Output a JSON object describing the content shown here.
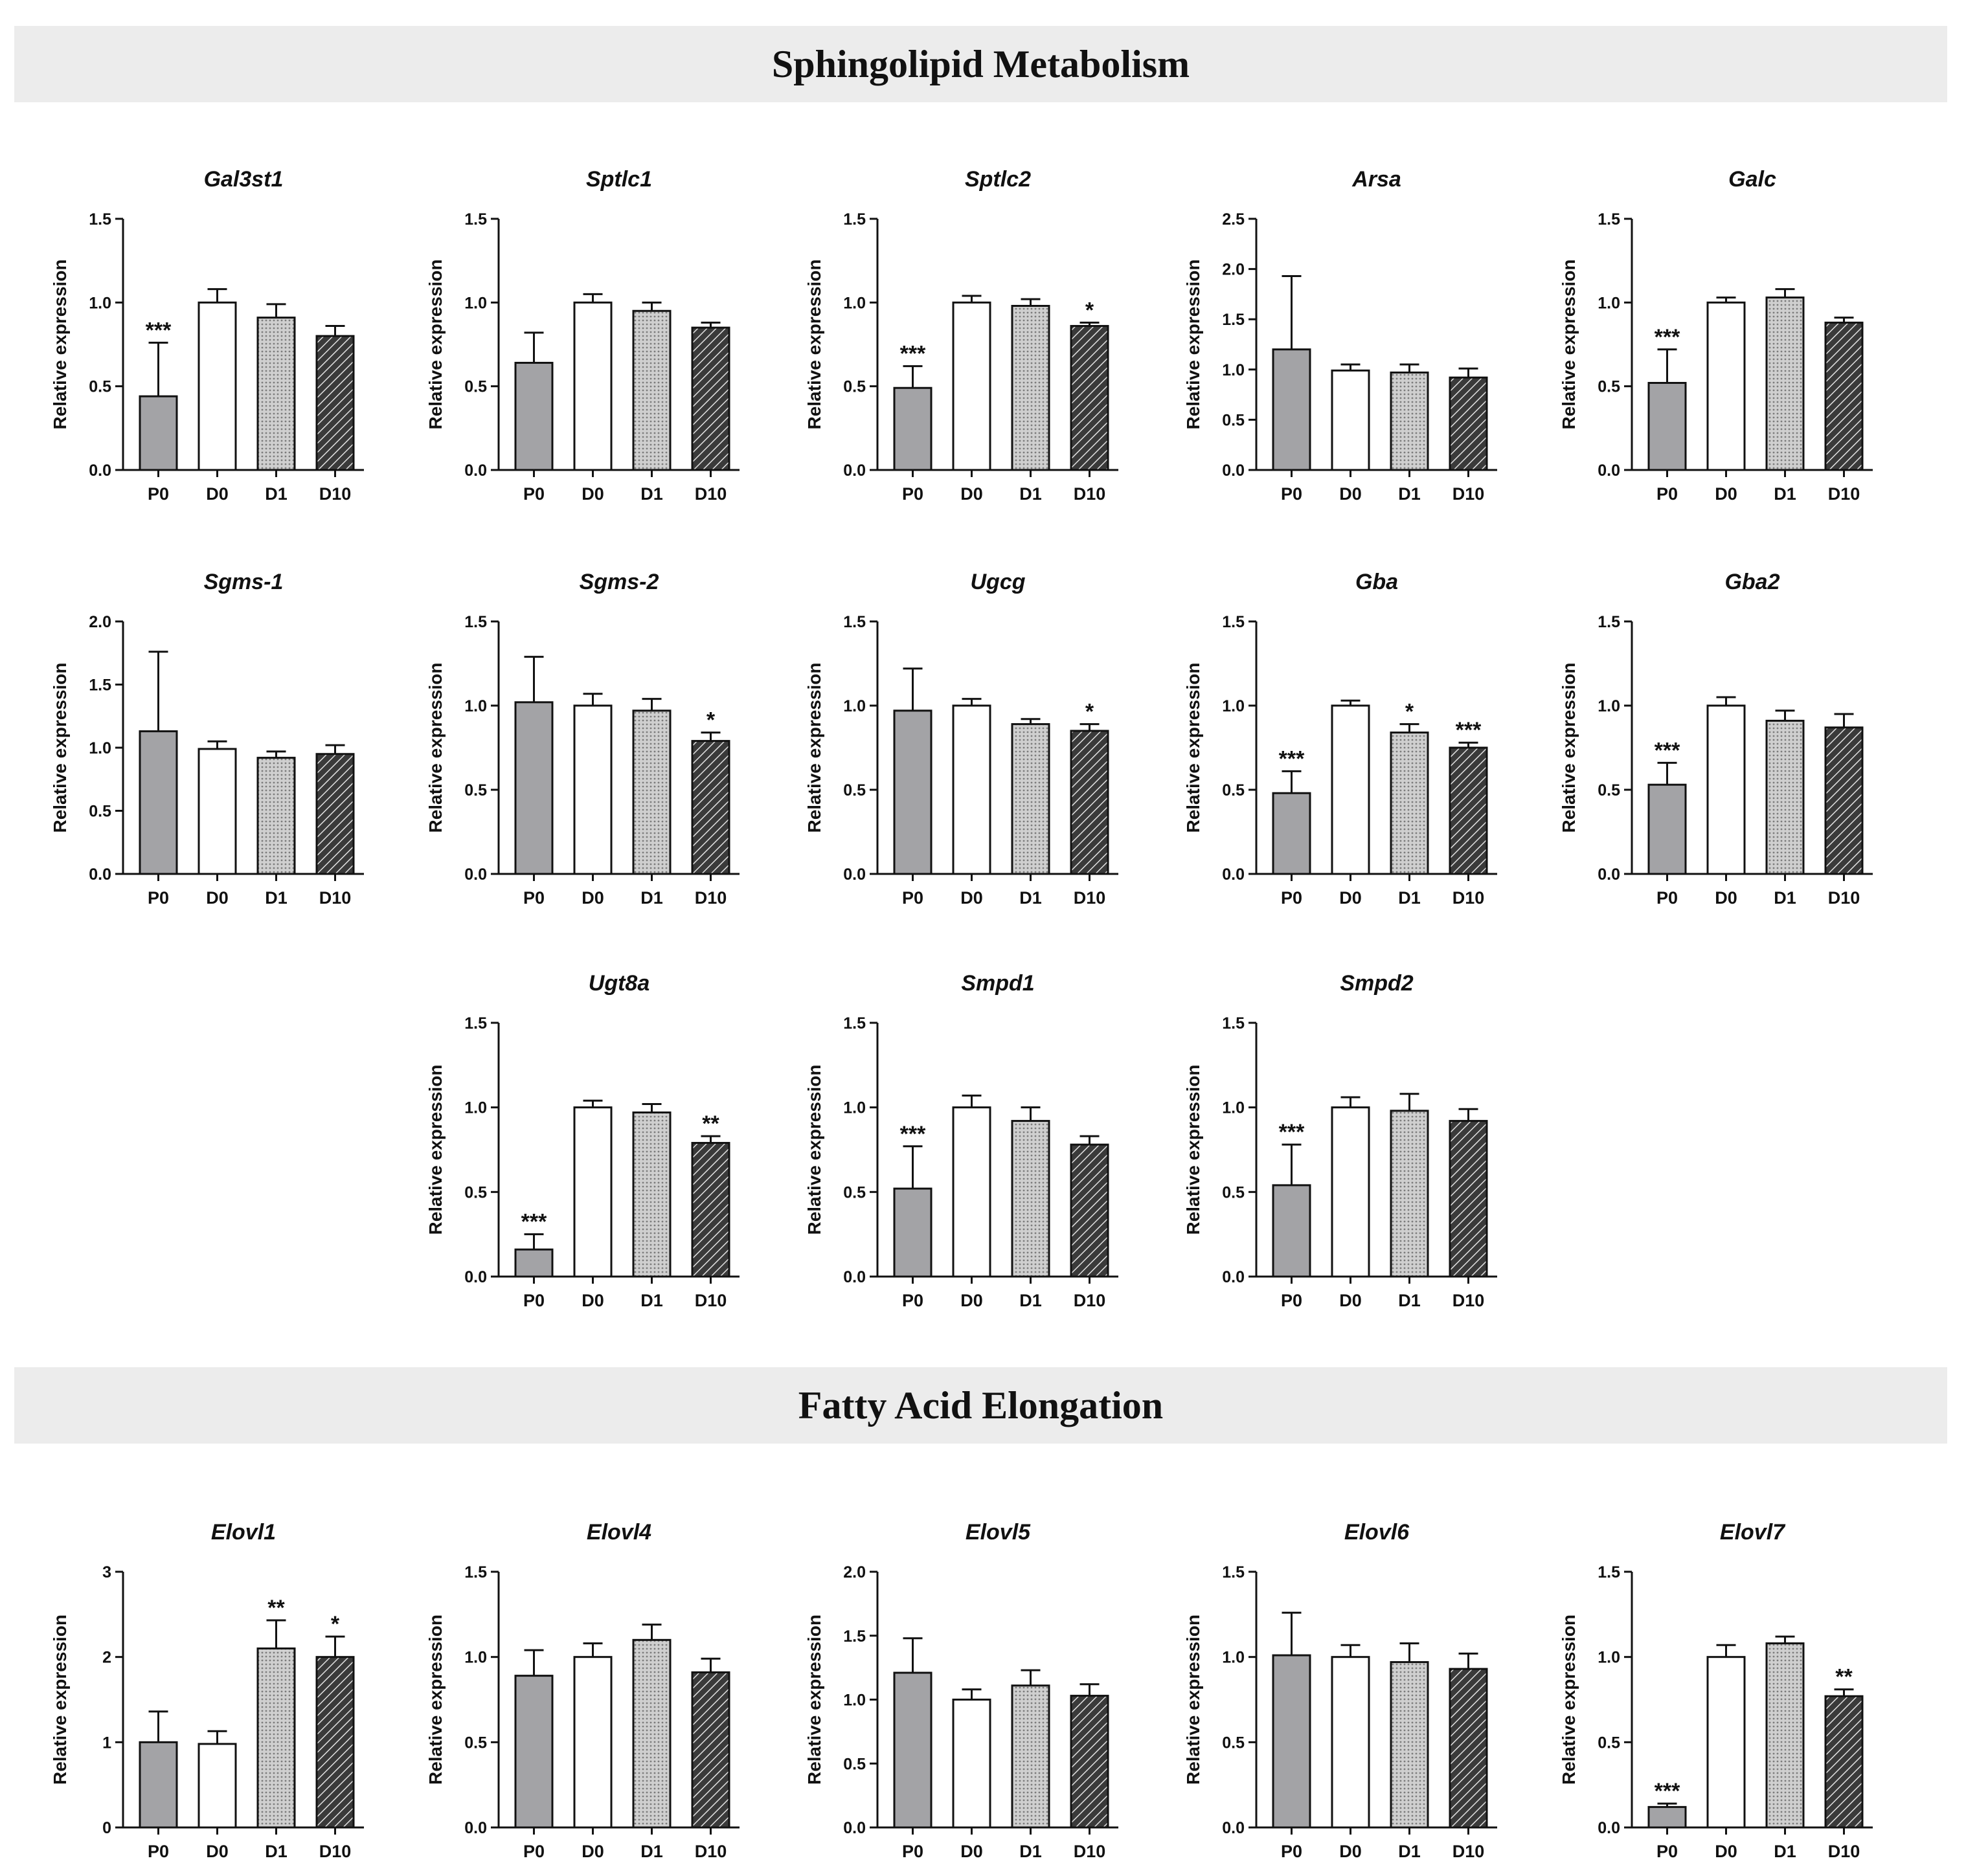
{
  "sections": {
    "sphingolipid": "Sphingolipid Metabolism",
    "fatty_acid": "Fatty Acid Elongation"
  },
  "colors": {
    "P0": "#a3a3a6",
    "D0": "#ffffff",
    "D1": "#c8c8c8",
    "D10": "#4a4a4a",
    "axis": "#111111"
  },
  "chart_data": [
    {
      "type": "bar",
      "title": "Gal3st1",
      "ylabel": "Relative expression",
      "categories": [
        "P0",
        "D0",
        "D1",
        "D10"
      ],
      "values": [
        0.44,
        1.0,
        0.91,
        0.8
      ],
      "errors": [
        0.32,
        0.08,
        0.08,
        0.06
      ],
      "significance": [
        "***",
        "",
        "",
        ""
      ],
      "ylim": [
        0,
        1.5
      ],
      "yticks": [
        0.0,
        0.5,
        1.0,
        1.5
      ],
      "tick_labels": [
        "0.0",
        "0.5",
        "1.0",
        "1.5"
      ]
    },
    {
      "type": "bar",
      "title": "Sptlc1",
      "ylabel": "Relative expression",
      "categories": [
        "P0",
        "D0",
        "D1",
        "D10"
      ],
      "values": [
        0.64,
        1.0,
        0.95,
        0.85
      ],
      "errors": [
        0.18,
        0.05,
        0.05,
        0.03
      ],
      "significance": [
        "",
        "",
        "",
        ""
      ],
      "ylim": [
        0,
        1.5
      ],
      "yticks": [
        0.0,
        0.5,
        1.0,
        1.5
      ],
      "tick_labels": [
        "0.0",
        "0.5",
        "1.0",
        "1.5"
      ]
    },
    {
      "type": "bar",
      "title": "Sptlc2",
      "ylabel": "Relative expression",
      "categories": [
        "P0",
        "D0",
        "D1",
        "D10"
      ],
      "values": [
        0.49,
        1.0,
        0.98,
        0.86
      ],
      "errors": [
        0.13,
        0.04,
        0.04,
        0.02
      ],
      "significance": [
        "***",
        "",
        "",
        "*"
      ],
      "ylim": [
        0,
        1.5
      ],
      "yticks": [
        0.0,
        0.5,
        1.0,
        1.5
      ],
      "tick_labels": [
        "0.0",
        "0.5",
        "1.0",
        "1.5"
      ]
    },
    {
      "type": "bar",
      "title": "Arsa",
      "ylabel": "Relative expression",
      "categories": [
        "P0",
        "D0",
        "D1",
        "D10"
      ],
      "values": [
        1.2,
        0.99,
        0.97,
        0.92
      ],
      "errors": [
        0.73,
        0.06,
        0.08,
        0.09
      ],
      "significance": [
        "",
        "",
        "",
        ""
      ],
      "ylim": [
        0,
        2.5
      ],
      "yticks": [
        0.0,
        0.5,
        1.0,
        1.5,
        2.0,
        2.5
      ],
      "tick_labels": [
        "0.0",
        "0.5",
        "1.0",
        "1.5",
        "2.0",
        "2.5"
      ]
    },
    {
      "type": "bar",
      "title": "Galc",
      "ylabel": "Relative expression",
      "categories": [
        "P0",
        "D0",
        "D1",
        "D10"
      ],
      "values": [
        0.52,
        1.0,
        1.03,
        0.88
      ],
      "errors": [
        0.2,
        0.03,
        0.05,
        0.03
      ],
      "significance": [
        "***",
        "",
        "",
        ""
      ],
      "ylim": [
        0,
        1.5
      ],
      "yticks": [
        0.0,
        0.5,
        1.0,
        1.5
      ],
      "tick_labels": [
        "0.0",
        "0.5",
        "1.0",
        "1.5"
      ]
    },
    {
      "type": "bar",
      "title": "Sgms-1",
      "ylabel": "Relative expression",
      "categories": [
        "P0",
        "D0",
        "D1",
        "D10"
      ],
      "values": [
        1.13,
        0.99,
        0.92,
        0.95
      ],
      "errors": [
        0.63,
        0.06,
        0.05,
        0.07
      ],
      "significance": [
        "",
        "",
        "",
        ""
      ],
      "ylim": [
        0,
        2.0
      ],
      "yticks": [
        0.0,
        0.5,
        1.0,
        1.5,
        2.0
      ],
      "tick_labels": [
        "0.0",
        "0.5",
        "1.0",
        "1.5",
        "2.0"
      ]
    },
    {
      "type": "bar",
      "title": "Sgms-2",
      "ylabel": "Relative expression",
      "categories": [
        "P0",
        "D0",
        "D1",
        "D10"
      ],
      "values": [
        1.02,
        1.0,
        0.97,
        0.79
      ],
      "errors": [
        0.27,
        0.07,
        0.07,
        0.05
      ],
      "significance": [
        "",
        "",
        "",
        "*"
      ],
      "ylim": [
        0,
        1.5
      ],
      "yticks": [
        0.0,
        0.5,
        1.0,
        1.5
      ],
      "tick_labels": [
        "0.0",
        "0.5",
        "1.0",
        "1.5"
      ]
    },
    {
      "type": "bar",
      "title": "Ugcg",
      "ylabel": "Relative expression",
      "categories": [
        "P0",
        "D0",
        "D1",
        "D10"
      ],
      "values": [
        0.97,
        1.0,
        0.89,
        0.85
      ],
      "errors": [
        0.25,
        0.04,
        0.03,
        0.04
      ],
      "significance": [
        "",
        "",
        "",
        "*"
      ],
      "ylim": [
        0,
        1.5
      ],
      "yticks": [
        0.0,
        0.5,
        1.0,
        1.5
      ],
      "tick_labels": [
        "0.0",
        "0.5",
        "1.0",
        "1.5"
      ]
    },
    {
      "type": "bar",
      "title": "Gba",
      "ylabel": "Relative expression",
      "categories": [
        "P0",
        "D0",
        "D1",
        "D10"
      ],
      "values": [
        0.48,
        1.0,
        0.84,
        0.75
      ],
      "errors": [
        0.13,
        0.03,
        0.05,
        0.03
      ],
      "significance": [
        "***",
        "",
        "*",
        "***"
      ],
      "ylim": [
        0,
        1.5
      ],
      "yticks": [
        0.0,
        0.5,
        1.0,
        1.5
      ],
      "tick_labels": [
        "0.0",
        "0.5",
        "1.0",
        "1.5"
      ]
    },
    {
      "type": "bar",
      "title": "Gba2",
      "ylabel": "Relative expression",
      "categories": [
        "P0",
        "D0",
        "D1",
        "D10"
      ],
      "values": [
        0.53,
        1.0,
        0.91,
        0.87
      ],
      "errors": [
        0.13,
        0.05,
        0.06,
        0.08
      ],
      "significance": [
        "***",
        "",
        "",
        ""
      ],
      "ylim": [
        0,
        1.5
      ],
      "yticks": [
        0.0,
        0.5,
        1.0,
        1.5
      ],
      "tick_labels": [
        "0.0",
        "0.5",
        "1.0",
        "1.5"
      ]
    },
    {
      "type": "bar",
      "title": "Ugt8a",
      "ylabel": "Relative expression",
      "categories": [
        "P0",
        "D0",
        "D1",
        "D10"
      ],
      "values": [
        0.16,
        1.0,
        0.97,
        0.79
      ],
      "errors": [
        0.09,
        0.04,
        0.05,
        0.04
      ],
      "significance": [
        "***",
        "",
        "",
        "**"
      ],
      "ylim": [
        0,
        1.5
      ],
      "yticks": [
        0.0,
        0.5,
        1.0,
        1.5
      ],
      "tick_labels": [
        "0.0",
        "0.5",
        "1.0",
        "1.5"
      ]
    },
    {
      "type": "bar",
      "title": "Smpd1",
      "ylabel": "Relative expression",
      "categories": [
        "P0",
        "D0",
        "D1",
        "D10"
      ],
      "values": [
        0.52,
        1.0,
        0.92,
        0.78
      ],
      "errors": [
        0.25,
        0.07,
        0.08,
        0.05
      ],
      "significance": [
        "***",
        "",
        "",
        ""
      ],
      "ylim": [
        0,
        1.5
      ],
      "yticks": [
        0.0,
        0.5,
        1.0,
        1.5
      ],
      "tick_labels": [
        "0.0",
        "0.5",
        "1.0",
        "1.5"
      ]
    },
    {
      "type": "bar",
      "title": "Smpd2",
      "ylabel": "Relative expression",
      "categories": [
        "P0",
        "D0",
        "D1",
        "D10"
      ],
      "values": [
        0.54,
        1.0,
        0.98,
        0.92
      ],
      "errors": [
        0.24,
        0.06,
        0.1,
        0.07
      ],
      "significance": [
        "***",
        "",
        "",
        ""
      ],
      "ylim": [
        0,
        1.5
      ],
      "yticks": [
        0.0,
        0.5,
        1.0,
        1.5
      ],
      "tick_labels": [
        "0.0",
        "0.5",
        "1.0",
        "1.5"
      ]
    },
    {
      "type": "bar",
      "title": "Elovl1",
      "ylabel": "Relative expression",
      "categories": [
        "P0",
        "D0",
        "D1",
        "D10"
      ],
      "values": [
        1.0,
        0.98,
        2.1,
        2.0
      ],
      "errors": [
        0.36,
        0.15,
        0.33,
        0.24
      ],
      "significance": [
        "",
        "",
        "**",
        "*"
      ],
      "ylim": [
        0,
        3
      ],
      "yticks": [
        0,
        1,
        2,
        3
      ],
      "tick_labels": [
        "0",
        "1",
        "2",
        "3"
      ]
    },
    {
      "type": "bar",
      "title": "Elovl4",
      "ylabel": "Relative expression",
      "categories": [
        "P0",
        "D0",
        "D1",
        "D10"
      ],
      "values": [
        0.89,
        1.0,
        1.1,
        0.91
      ],
      "errors": [
        0.15,
        0.08,
        0.09,
        0.08
      ],
      "significance": [
        "",
        "",
        "",
        ""
      ],
      "ylim": [
        0,
        1.5
      ],
      "yticks": [
        0.0,
        0.5,
        1.0,
        1.5
      ],
      "tick_labels": [
        "0.0",
        "0.5",
        "1.0",
        "1.5"
      ]
    },
    {
      "type": "bar",
      "title": "Elovl5",
      "ylabel": "Relative expression",
      "categories": [
        "P0",
        "D0",
        "D1",
        "D10"
      ],
      "values": [
        1.21,
        1.0,
        1.11,
        1.03
      ],
      "errors": [
        0.27,
        0.08,
        0.12,
        0.09
      ],
      "significance": [
        "",
        "",
        "",
        ""
      ],
      "ylim": [
        0,
        2.0
      ],
      "yticks": [
        0.0,
        0.5,
        1.0,
        1.5,
        2.0
      ],
      "tick_labels": [
        "0.0",
        "0.5",
        "1.0",
        "1.5",
        "2.0"
      ]
    },
    {
      "type": "bar",
      "title": "Elovl6",
      "ylabel": "Relative expression",
      "categories": [
        "P0",
        "D0",
        "D1",
        "D10"
      ],
      "values": [
        1.01,
        1.0,
        0.97,
        0.93
      ],
      "errors": [
        0.25,
        0.07,
        0.11,
        0.09
      ],
      "significance": [
        "",
        "",
        "",
        ""
      ],
      "ylim": [
        0,
        1.5
      ],
      "yticks": [
        0.0,
        0.5,
        1.0,
        1.5
      ],
      "tick_labels": [
        "0.0",
        "0.5",
        "1.0",
        "1.5"
      ]
    },
    {
      "type": "bar",
      "title": "Elovl7",
      "ylabel": "Relative expression",
      "categories": [
        "P0",
        "D0",
        "D1",
        "D10"
      ],
      "values": [
        0.12,
        1.0,
        1.08,
        0.77
      ],
      "errors": [
        0.02,
        0.07,
        0.04,
        0.04
      ],
      "significance": [
        "***",
        "",
        "",
        "**"
      ],
      "ylim": [
        0,
        1.5
      ],
      "yticks": [
        0.0,
        0.5,
        1.0,
        1.5
      ],
      "tick_labels": [
        "0.0",
        "0.5",
        "1.0",
        "1.5"
      ]
    }
  ]
}
